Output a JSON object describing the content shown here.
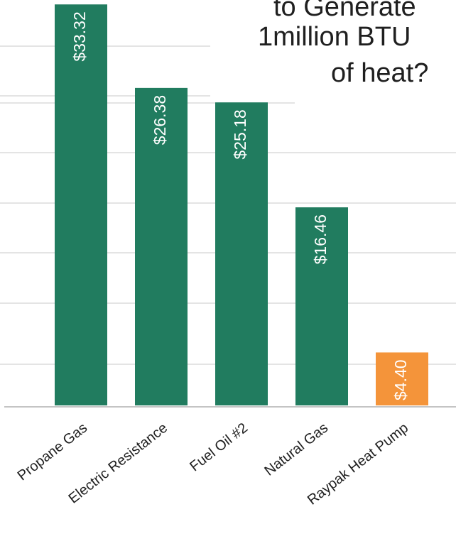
{
  "chart_data": {
    "type": "bar",
    "title_lines": [
      "to Generate",
      "1million BTU",
      "of heat?"
    ],
    "categories": [
      "Propane Gas",
      "Electric Resistance",
      "Fuel Oil #2",
      "Natural Gas",
      "Raypak Heat Pump"
    ],
    "values": [
      33.32,
      26.38,
      25.18,
      16.46,
      4.4
    ],
    "value_labels": [
      "$33.32",
      "$26.38",
      "$25.18",
      "$16.46",
      "$4.40"
    ],
    "colors": [
      "#217c5f",
      "#217c5f",
      "#217c5f",
      "#217c5f",
      "#f4943a"
    ],
    "xlabel": "",
    "ylabel": "",
    "grid": true,
    "legend": "none"
  }
}
